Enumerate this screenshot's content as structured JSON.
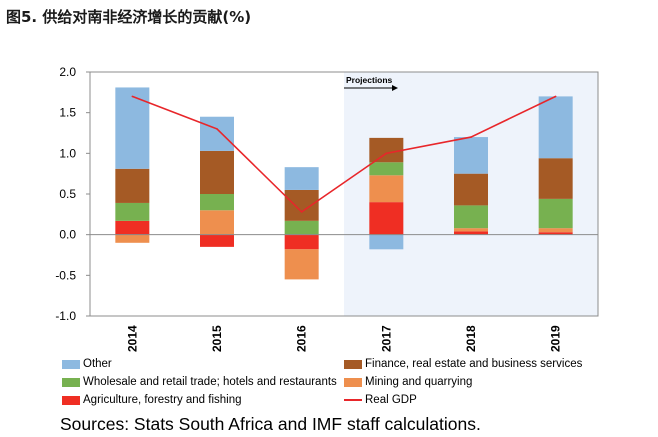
{
  "figure_title": "图5. 供给对南非经济增长的贡献(%)",
  "source_note": "Sources: Stats South Africa and IMF staff calculations.",
  "colors": {
    "other": "#8db9e0",
    "finance": "#a55a25",
    "wholesale": "#77b150",
    "mining": "#ee8f4e",
    "agriculture": "#ef2e23",
    "real_gdp": "#e8262a",
    "projection_bg": "#eef3fb"
  },
  "chart_data": {
    "type": "bar",
    "stacked": true,
    "categories": [
      "2014",
      "2015",
      "2016",
      "2017",
      "2018",
      "2019"
    ],
    "ylim": [
      -1.0,
      2.0
    ],
    "yticks": [
      "2.0",
      "1.5",
      "1.0",
      "0.5",
      "0.0",
      "-0.5",
      "-1.0"
    ],
    "ytick_values": [
      2.0,
      1.5,
      1.0,
      0.5,
      0.0,
      -0.5,
      -1.0
    ],
    "xlabel": "",
    "ylabel": "",
    "projection_label": "Projections",
    "projection_start_category": "2017",
    "series": [
      {
        "name": "Agriculture, forestry and fishing",
        "key": "agriculture",
        "values": [
          0.17,
          -0.15,
          -0.18,
          0.4,
          0.04,
          0.03
        ]
      },
      {
        "name": "Mining and quarrying",
        "key": "mining",
        "values": [
          -0.1,
          0.3,
          -0.37,
          0.33,
          0.04,
          0.05
        ]
      },
      {
        "name": "Wholesale and retail trade; hotels and restaurants",
        "key": "wholesale",
        "values": [
          0.22,
          0.2,
          0.17,
          0.16,
          0.28,
          0.36
        ]
      },
      {
        "name": "Finance, real estate and business services",
        "key": "finance",
        "values": [
          0.42,
          0.53,
          0.38,
          0.3,
          0.39,
          0.5
        ]
      },
      {
        "name": "Other",
        "key": "other",
        "values": [
          1.0,
          0.42,
          0.28,
          -0.18,
          0.45,
          0.76
        ]
      }
    ],
    "line_series": {
      "name": "Real GDP",
      "key": "real_gdp",
      "values": [
        1.7,
        1.3,
        0.28,
        1.0,
        1.2,
        1.7
      ]
    }
  },
  "legend": [
    {
      "label": "Other",
      "key": "other",
      "kind": "box"
    },
    {
      "label": "Finance, real estate and business services",
      "key": "finance",
      "kind": "box"
    },
    {
      "label": "Wholesale and retail trade; hotels and restaurants",
      "key": "wholesale",
      "kind": "box"
    },
    {
      "label": "Mining and quarrying",
      "key": "mining",
      "kind": "box"
    },
    {
      "label": "Agriculture, forestry and fishing",
      "key": "agriculture",
      "kind": "box"
    },
    {
      "label": "Real GDP",
      "key": "real_gdp",
      "kind": "line"
    }
  ]
}
